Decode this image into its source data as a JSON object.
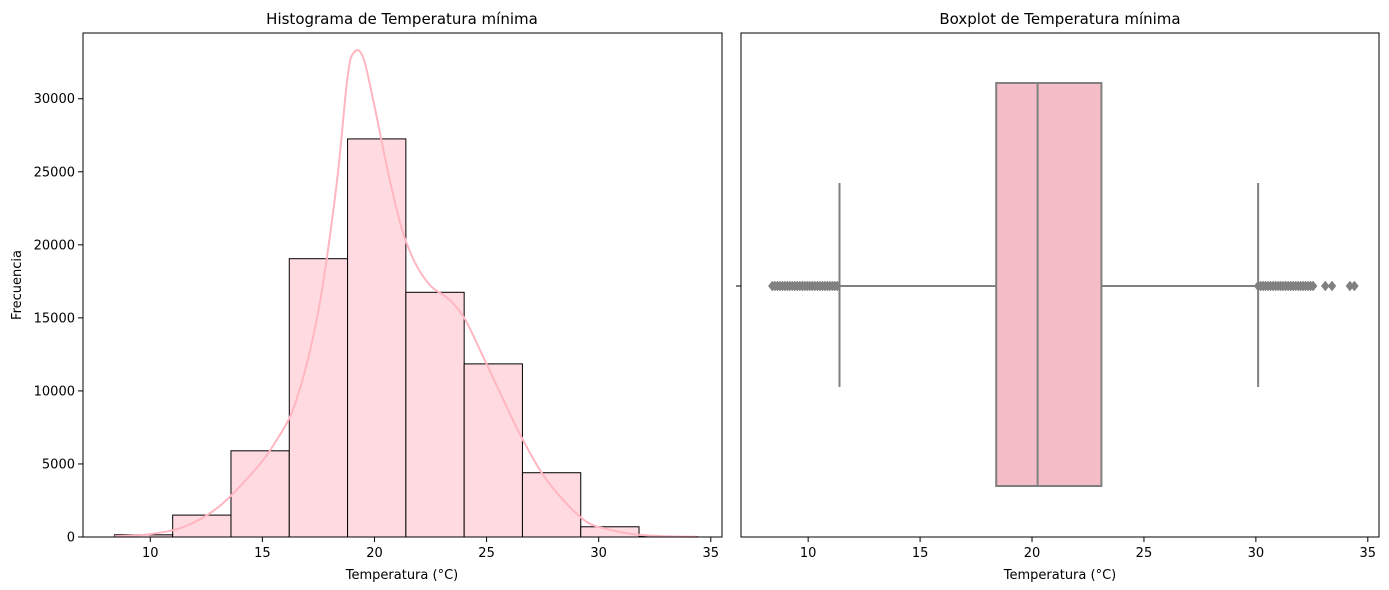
{
  "chart_data": [
    {
      "type": "bar",
      "title": "Histograma de Temperatura mínima",
      "xlabel": "Temperatura (°C)",
      "ylabel": "Frecuencia",
      "xlim": [
        7.0,
        35.5
      ],
      "ylim": [
        0,
        34500
      ],
      "xticks": [
        10,
        15,
        20,
        25,
        30,
        35
      ],
      "yticks": [
        0,
        5000,
        10000,
        15000,
        20000,
        25000,
        30000
      ],
      "bins": [
        {
          "start": 8.4,
          "end": 11.0,
          "count": 150
        },
        {
          "start": 11.0,
          "end": 13.6,
          "count": 1500
        },
        {
          "start": 13.6,
          "end": 16.2,
          "count": 5900
        },
        {
          "start": 16.2,
          "end": 18.8,
          "count": 19050
        },
        {
          "start": 18.8,
          "end": 21.4,
          "count": 27250
        },
        {
          "start": 21.4,
          "end": 24.0,
          "count": 16750
        },
        {
          "start": 24.0,
          "end": 26.6,
          "count": 11850
        },
        {
          "start": 26.6,
          "end": 29.2,
          "count": 4400
        },
        {
          "start": 29.2,
          "end": 31.8,
          "count": 700
        },
        {
          "start": 31.8,
          "end": 34.4,
          "count": 30
        }
      ],
      "kde": {
        "x": [
          8.4,
          10.0,
          11.5,
          13.0,
          14.5,
          15.5,
          16.5,
          17.5,
          18.3,
          18.8,
          19.1,
          19.5,
          20.0,
          20.6,
          21.2,
          21.8,
          22.5,
          23.3,
          24.0,
          24.8,
          25.5,
          26.5,
          27.5,
          28.5,
          29.5,
          30.5,
          31.5,
          32.5,
          33.5,
          34.4
        ],
        "y": [
          50,
          200,
          700,
          2000,
          4300,
          6300,
          9300,
          15500,
          24000,
          31500,
          33200,
          32800,
          29500,
          25000,
          21200,
          18800,
          17200,
          16300,
          15000,
          12500,
          10200,
          7000,
          4300,
          2400,
          1000,
          500,
          200,
          80,
          30,
          10
        ]
      },
      "colors": {
        "bar_fill": "#ffdbe1",
        "bar_edge": "#000000",
        "kde": "#ffb6c1"
      }
    },
    {
      "type": "boxplot",
      "title": "Boxplot de Temperatura mínima",
      "xlabel": "Temperatura (°C)",
      "xlim": [
        7.0,
        35.5
      ],
      "xticks": [
        10,
        15,
        20,
        25,
        30,
        35
      ],
      "q1": 18.4,
      "median": 20.25,
      "q3": 23.1,
      "whisker_low": 11.4,
      "whisker_high": 30.1,
      "outlier_low_range": [
        8.4,
        11.4
      ],
      "outlier_high_range": [
        30.1,
        32.6
      ],
      "outliers_extra": [
        33.1,
        33.4,
        34.2,
        34.4
      ],
      "colors": {
        "box_fill": "#f5bdc8",
        "line": "#808080"
      }
    }
  ]
}
